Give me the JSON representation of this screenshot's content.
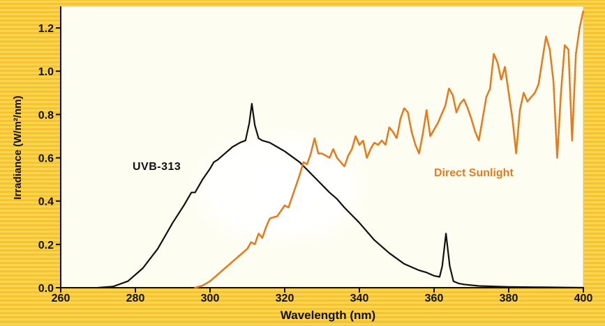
{
  "chart_data": {
    "type": "line",
    "title": "",
    "xlabel": "Wavelength (nm)",
    "ylabel": "Irradiance (W/m²/nm)",
    "xlim": [
      260,
      400
    ],
    "ylim": [
      0,
      1.3
    ],
    "x_ticks": [
      "260",
      "280",
      "300",
      "320",
      "340",
      "360",
      "380",
      "400"
    ],
    "y_ticks": [
      "0.0",
      "0.2",
      "0.4",
      "0.6",
      "0.8",
      "1.0",
      "1.2"
    ],
    "grid": false,
    "series": [
      {
        "name": "UVB-313",
        "color": "#111111",
        "x": [
          270,
          274,
          278,
          282,
          286,
          290,
          293,
          295,
          296,
          298,
          300,
          301,
          302,
          304,
          306,
          308,
          309.5,
          310.5,
          311.2,
          312,
          313,
          314,
          316,
          318,
          320,
          324,
          328,
          332,
          334,
          336,
          340,
          344,
          348,
          352,
          356,
          358,
          360,
          361.5,
          362.2,
          363.2,
          364.2,
          365.2,
          366.5,
          368,
          372,
          380,
          390,
          400
        ],
        "y": [
          0.0,
          0.005,
          0.03,
          0.09,
          0.18,
          0.3,
          0.38,
          0.44,
          0.44,
          0.5,
          0.55,
          0.58,
          0.59,
          0.62,
          0.65,
          0.67,
          0.68,
          0.76,
          0.85,
          0.75,
          0.69,
          0.68,
          0.67,
          0.65,
          0.63,
          0.58,
          0.51,
          0.44,
          0.41,
          0.37,
          0.3,
          0.22,
          0.16,
          0.11,
          0.08,
          0.07,
          0.055,
          0.05,
          0.1,
          0.25,
          0.1,
          0.03,
          0.02,
          0.015,
          0.008,
          0.004,
          0.002,
          0.0
        ]
      },
      {
        "name": "Direct Sunlight",
        "color": "#e87a1c",
        "x": [
          296,
          298,
          300,
          302,
          304,
          306,
          308,
          310,
          311,
          312,
          313,
          314,
          315,
          316,
          318,
          320,
          321,
          322,
          323,
          324,
          325,
          326,
          327,
          328,
          329,
          330,
          331,
          332,
          333,
          334,
          336,
          337,
          338,
          339,
          340,
          341,
          342,
          343,
          344,
          345,
          346,
          347,
          348,
          349,
          350,
          351,
          352,
          353,
          354,
          355,
          356,
          357,
          358,
          359,
          360,
          361,
          362,
          363,
          364,
          365,
          366,
          367,
          368,
          369,
          370,
          371,
          372,
          373,
          374,
          375,
          376,
          377,
          378,
          379,
          380,
          381,
          382,
          383,
          384,
          385,
          386,
          387,
          388,
          389,
          390,
          391,
          392,
          393,
          394,
          395,
          396,
          397,
          398,
          399,
          400
        ],
        "y": [
          0.0,
          0.01,
          0.03,
          0.06,
          0.09,
          0.12,
          0.15,
          0.18,
          0.21,
          0.2,
          0.25,
          0.23,
          0.28,
          0.32,
          0.33,
          0.38,
          0.37,
          0.42,
          0.47,
          0.52,
          0.58,
          0.57,
          0.62,
          0.69,
          0.62,
          0.62,
          0.61,
          0.6,
          0.64,
          0.6,
          0.56,
          0.61,
          0.64,
          0.7,
          0.66,
          0.68,
          0.6,
          0.64,
          0.67,
          0.66,
          0.68,
          0.66,
          0.74,
          0.72,
          0.69,
          0.78,
          0.83,
          0.81,
          0.72,
          0.66,
          0.62,
          0.71,
          0.82,
          0.7,
          0.73,
          0.76,
          0.8,
          0.84,
          0.92,
          0.89,
          0.81,
          0.85,
          0.87,
          0.83,
          0.78,
          0.72,
          0.68,
          0.78,
          0.88,
          0.92,
          1.08,
          1.04,
          0.96,
          1.02,
          0.9,
          0.78,
          0.62,
          0.82,
          0.9,
          0.86,
          0.88,
          0.9,
          0.94,
          1.05,
          1.16,
          1.1,
          0.95,
          0.6,
          0.9,
          1.12,
          1.1,
          0.68,
          1.08,
          1.2,
          1.28
        ]
      }
    ],
    "annotations": [
      {
        "text": "UVB-313",
        "series": "UVB-313"
      },
      {
        "text": "Direct Sunlight",
        "series": "Direct Sunlight"
      }
    ]
  }
}
